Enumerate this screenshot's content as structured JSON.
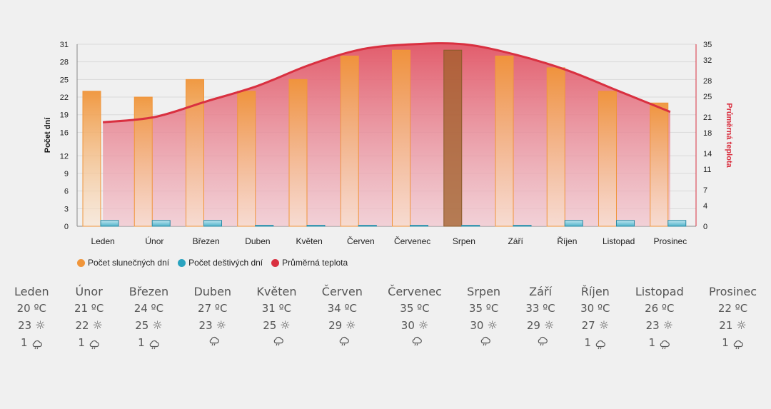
{
  "chart_data": {
    "type": "bar",
    "categories": [
      "Leden",
      "Únor",
      "Březen",
      "Duben",
      "Květen",
      "Červen",
      "Červenec",
      "Srpen",
      "Září",
      "Říjen",
      "Listopad",
      "Prosinec"
    ],
    "series": [
      {
        "name": "Počet slunečných dní",
        "kind": "bar",
        "axis": "left",
        "color": "#f0953a",
        "values": [
          23,
          22,
          25,
          23,
          25,
          29,
          30,
          30,
          29,
          27,
          23,
          21
        ]
      },
      {
        "name": "Počet deštivých dní",
        "kind": "bar",
        "axis": "left",
        "color": "#2aa3bf",
        "values": [
          1,
          1,
          1,
          0,
          0,
          0,
          0,
          0,
          0,
          1,
          1,
          1
        ]
      },
      {
        "name": "Průměrná teplota",
        "kind": "area-line",
        "axis": "right",
        "color": "#d93040",
        "values": [
          20,
          21,
          24,
          27,
          31,
          34,
          35,
          35,
          33,
          30,
          26,
          22
        ]
      }
    ],
    "highlight_category": "Srpen",
    "ylabel": "Počet dní",
    "y2label": "Průměrná teplota",
    "ylim": [
      0,
      31
    ],
    "y2lim": [
      0,
      35
    ],
    "yticks": [
      0,
      3,
      6,
      9,
      12,
      16,
      19,
      22,
      25,
      28,
      31
    ],
    "y2ticks": [
      0,
      4,
      7,
      11,
      14,
      18,
      21,
      25,
      28,
      32,
      35
    ],
    "grid": true,
    "legend_position": "bottom-left"
  },
  "legend": [
    {
      "label": "Počet slunečných dní",
      "color": "#f0953a"
    },
    {
      "label": "Počet deštivých dní",
      "color": "#2aa3bf"
    },
    {
      "label": "Průměrná teplota",
      "color": "#d93040"
    }
  ],
  "summary": [
    {
      "month": "Leden",
      "temp": "20 ºC",
      "sun": "23",
      "rain": "1"
    },
    {
      "month": "Únor",
      "temp": "21 ºC",
      "sun": "22",
      "rain": "1"
    },
    {
      "month": "Březen",
      "temp": "24 ºC",
      "sun": "25",
      "rain": "1"
    },
    {
      "month": "Duben",
      "temp": "27 ºC",
      "sun": "23",
      "rain": ""
    },
    {
      "month": "Květen",
      "temp": "31 ºC",
      "sun": "25",
      "rain": ""
    },
    {
      "month": "Červen",
      "temp": "34 ºC",
      "sun": "29",
      "rain": ""
    },
    {
      "month": "Červenec",
      "temp": "35 ºC",
      "sun": "30",
      "rain": ""
    },
    {
      "month": "Srpen",
      "temp": "35 ºC",
      "sun": "30",
      "rain": ""
    },
    {
      "month": "Září",
      "temp": "33 ºC",
      "sun": "29",
      "rain": ""
    },
    {
      "month": "Říjen",
      "temp": "30 ºC",
      "sun": "27",
      "rain": "1"
    },
    {
      "month": "Listopad",
      "temp": "26 ºC",
      "sun": "23",
      "rain": "1"
    },
    {
      "month": "Prosinec",
      "temp": "22 ºC",
      "sun": "21",
      "rain": "1"
    }
  ],
  "icons": {
    "sun": "sun-icon",
    "rain": "rain-cloud-icon"
  }
}
